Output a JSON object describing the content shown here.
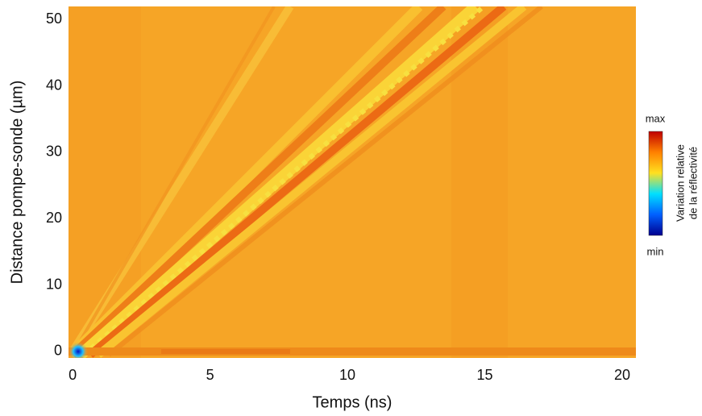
{
  "chart_data": {
    "type": "heatmap",
    "x_label": "Temps (ns)",
    "y_label": "Distance pompe-sonde (µm)",
    "xlim": [
      -0.15,
      20.5
    ],
    "xticks": [
      0,
      5,
      10,
      15,
      20
    ],
    "ylim": [
      -1,
      52
    ],
    "yticks": [
      0,
      10,
      20,
      30,
      40,
      50
    ],
    "colorbar": {
      "title": [
        "Variation relative",
        "de la réflectivité"
      ],
      "max_label": "max",
      "min_label": "min",
      "colors": [
        "#00008f",
        "#0060ff",
        "#00e0ff",
        "#ffe020",
        "#ff8000",
        "#c00000"
      ]
    }
  }
}
